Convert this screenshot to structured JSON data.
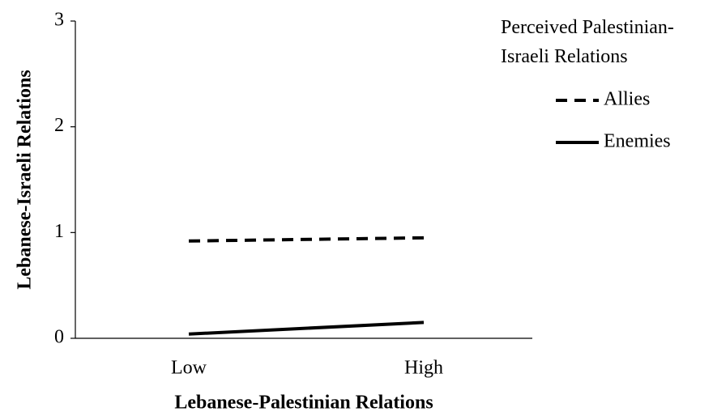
{
  "chart_data": {
    "type": "line",
    "y_label": "Lebanese-Israeli Relations",
    "x_label": "Lebanese-Palestinian Relations",
    "legend_title": "Perceived Palestinian-Israeli Relations",
    "categories": [
      "Low",
      "High"
    ],
    "series": [
      {
        "name": "Allies",
        "color": "#000000",
        "style": "dashed",
        "values": [
          0.92,
          0.95
        ]
      },
      {
        "name": "Enemies",
        "color": "#000000",
        "style": "solid",
        "values": [
          0.04,
          0.15
        ]
      }
    ],
    "ylim": [
      0,
      3
    ],
    "yticks": [
      0,
      1,
      2,
      3
    ]
  }
}
